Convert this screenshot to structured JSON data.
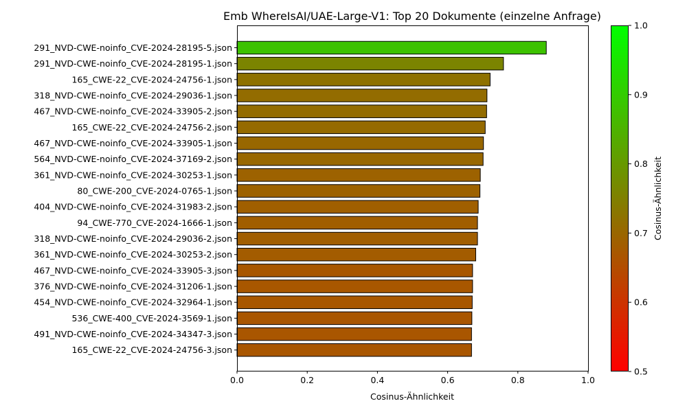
{
  "chart_data": {
    "type": "bar",
    "orientation": "horizontal",
    "title": "Emb WhereIsAI/UAE-Large-V1: Top 20 Dokumente (einzelne Anfrage)",
    "xlabel": "Cosinus-Ähnlichkeit",
    "ylabel": "",
    "xlim": [
      0.0,
      1.0
    ],
    "xticks": [
      "0.0",
      "0.2",
      "0.4",
      "0.6",
      "0.8",
      "1.0"
    ],
    "grid": false,
    "colormap": {
      "label": "Cosinus-Ähnlichkeit",
      "range": [
        0.5,
        1.0
      ],
      "ticks": [
        "0.5",
        "0.6",
        "0.7",
        "0.8",
        "0.9",
        "1.0"
      ],
      "low_color": "#ff0000",
      "high_color": "#00ff00"
    },
    "categories": [
      "291_NVD-CWE-noinfo_CVE-2024-28195-5.json",
      "291_NVD-CWE-noinfo_CVE-2024-28195-1.json",
      "165_CWE-22_CVE-2024-24756-1.json",
      "318_NVD-CWE-noinfo_CVE-2024-29036-1.json",
      "467_NVD-CWE-noinfo_CVE-2024-33905-2.json",
      "165_CWE-22_CVE-2024-24756-2.json",
      "467_NVD-CWE-noinfo_CVE-2024-33905-1.json",
      "564_NVD-CWE-noinfo_CVE-2024-37169-2.json",
      "361_NVD-CWE-noinfo_CVE-2024-30253-1.json",
      "80_CWE-200_CVE-2024-0765-1.json",
      "404_NVD-CWE-noinfo_CVE-2024-31983-2.json",
      "94_CWE-770_CVE-2024-1666-1.json",
      "318_NVD-CWE-noinfo_CVE-2024-29036-2.json",
      "361_NVD-CWE-noinfo_CVE-2024-30253-2.json",
      "467_NVD-CWE-noinfo_CVE-2024-33905-3.json",
      "376_NVD-CWE-noinfo_CVE-2024-31206-1.json",
      "454_NVD-CWE-noinfo_CVE-2024-32964-1.json",
      "536_CWE-400_CVE-2024-3569-1.json",
      "491_NVD-CWE-noinfo_CVE-2024-34347-3.json",
      "165_CWE-22_CVE-2024-24756-3.json"
    ],
    "values": [
      0.881,
      0.759,
      0.721,
      0.712,
      0.711,
      0.707,
      0.702,
      0.701,
      0.693,
      0.692,
      0.687,
      0.685,
      0.685,
      0.68,
      0.671,
      0.671,
      0.67,
      0.669,
      0.668,
      0.668
    ]
  }
}
